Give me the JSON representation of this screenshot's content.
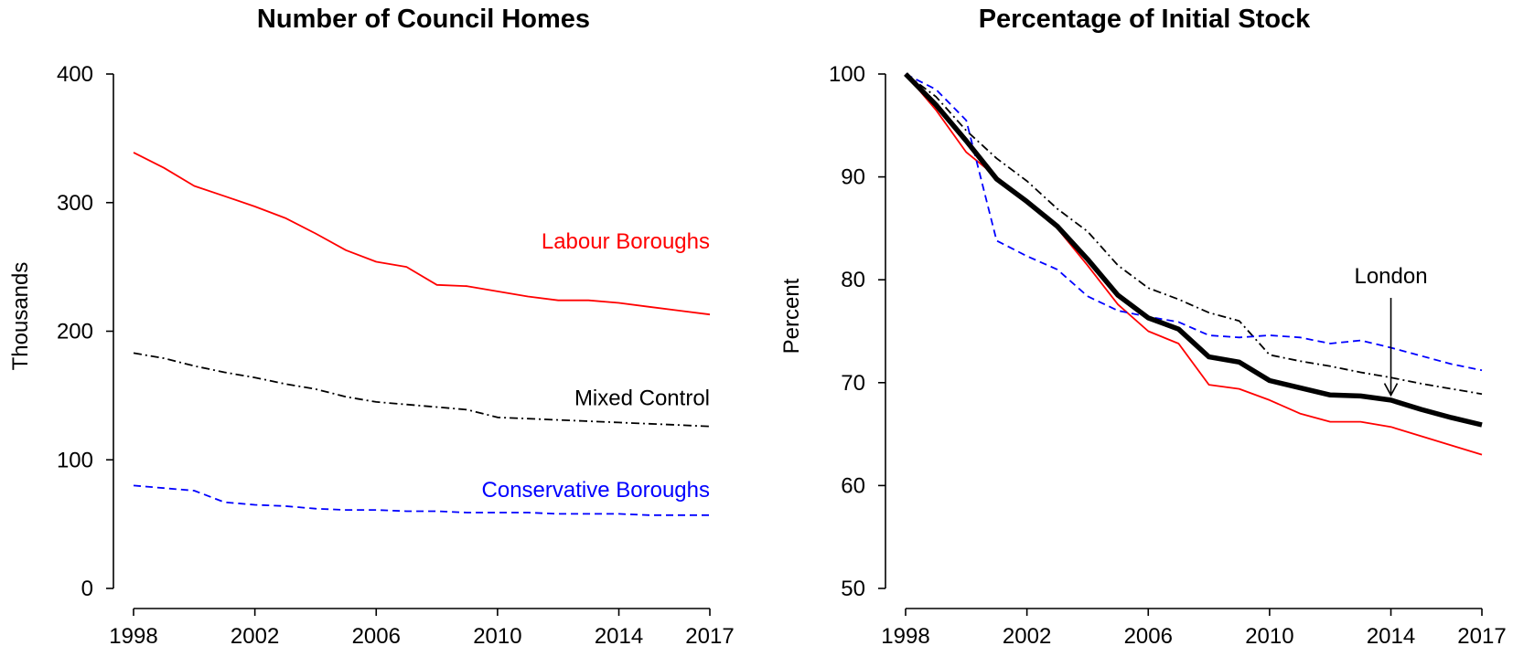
{
  "chart_data": [
    {
      "type": "line",
      "title": "Number of Council Homes",
      "xlabel": "",
      "ylabel": "Thousands",
      "xlim": [
        1998,
        2017
      ],
      "ylim": [
        0,
        400
      ],
      "x_ticks": [
        1998,
        2002,
        2006,
        2010,
        2014,
        2017
      ],
      "y_ticks": [
        0,
        100,
        200,
        300,
        400
      ],
      "x": [
        1998,
        1999,
        2000,
        2001,
        2002,
        2003,
        2004,
        2005,
        2006,
        2007,
        2008,
        2009,
        2010,
        2011,
        2012,
        2013,
        2014,
        2015,
        2016,
        2017
      ],
      "series": [
        {
          "name": "Labour Boroughs",
          "label": "Labour Boroughs",
          "color": "#ff0000",
          "line_style": "solid",
          "values": [
            339,
            327,
            313,
            305,
            297,
            288,
            276,
            263,
            254,
            250,
            236,
            235,
            231,
            227,
            224,
            224,
            222,
            219,
            216,
            213
          ]
        },
        {
          "name": "Mixed Control",
          "label": "Mixed Control",
          "color": "#000000",
          "line_style": "dashdot",
          "values": [
            183,
            179,
            173,
            168,
            164,
            159,
            155,
            149,
            145,
            143,
            141,
            139,
            133,
            132,
            131,
            130,
            129,
            128,
            127,
            126
          ]
        },
        {
          "name": "Conservative Boroughs",
          "label": "Conservative Boroughs",
          "color": "#0000ff",
          "line_style": "dashed",
          "values": [
            80,
            78,
            76,
            67,
            65,
            64,
            62,
            61,
            61,
            60,
            60,
            59,
            59,
            59,
            58,
            58,
            58,
            57,
            57,
            57
          ]
        }
      ]
    },
    {
      "type": "line",
      "title": "Percentage of Initial Stock",
      "xlabel": "",
      "ylabel": "Percent",
      "xlim": [
        1998,
        2017
      ],
      "ylim": [
        50,
        100
      ],
      "x_ticks": [
        1998,
        2002,
        2006,
        2010,
        2014,
        2017
      ],
      "y_ticks": [
        50,
        60,
        70,
        80,
        90,
        100
      ],
      "x": [
        1998,
        1999,
        2000,
        2001,
        2002,
        2003,
        2004,
        2005,
        2006,
        2007,
        2008,
        2009,
        2010,
        2011,
        2012,
        2013,
        2014,
        2015,
        2016,
        2017
      ],
      "series": [
        {
          "name": "Labour Boroughs",
          "color": "#ff0000",
          "line_style": "solid",
          "values": [
            100,
            96.5,
            92.4,
            90.0,
            87.6,
            85.0,
            81.4,
            77.6,
            75.0,
            73.8,
            69.8,
            69.4,
            68.3,
            67.0,
            66.2,
            66.2,
            65.7,
            64.8,
            63.9,
            63.0
          ]
        },
        {
          "name": "Mixed Control",
          "color": "#000000",
          "line_style": "dashdot",
          "values": [
            100,
            97.8,
            94.5,
            91.8,
            89.6,
            86.9,
            84.7,
            81.4,
            79.2,
            78.1,
            76.8,
            76.0,
            72.7,
            72.1,
            71.6,
            71.0,
            70.5,
            69.9,
            69.4,
            68.9
          ]
        },
        {
          "name": "Conservative Boroughs",
          "color": "#0000ff",
          "line_style": "dashed",
          "values": [
            100,
            98.5,
            95.5,
            83.8,
            82.3,
            81.0,
            78.4,
            77.0,
            76.4,
            75.9,
            74.6,
            74.4,
            74.6,
            74.4,
            73.8,
            74.1,
            73.4,
            72.6,
            71.8,
            71.2
          ]
        },
        {
          "name": "London",
          "color": "#000000",
          "line_style": "thick-solid",
          "values": [
            100,
            97.0,
            93.5,
            89.8,
            87.6,
            85.2,
            82.0,
            78.5,
            76.3,
            75.2,
            72.5,
            72.0,
            70.2,
            69.5,
            68.8,
            68.7,
            68.3,
            67.4,
            66.6,
            65.9
          ]
        }
      ],
      "annotation": {
        "text": "London",
        "points_to_x": 2014,
        "points_to_y": 68.6
      }
    }
  ]
}
